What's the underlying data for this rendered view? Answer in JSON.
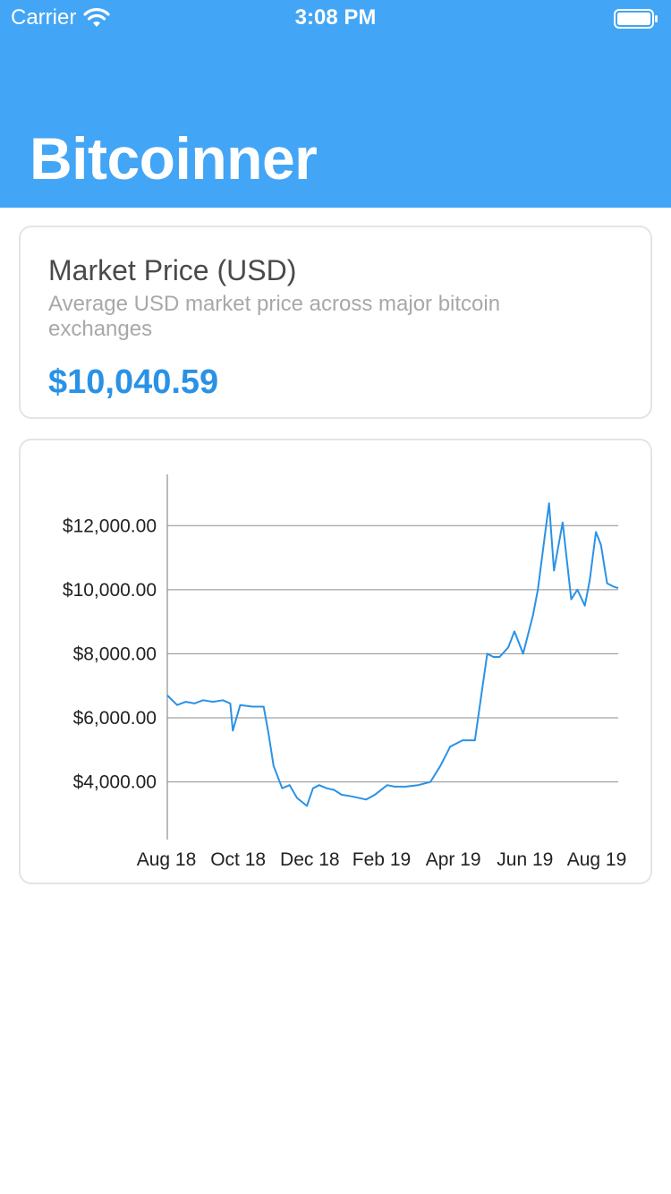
{
  "status_bar": {
    "carrier": "Carrier",
    "time": "3:08 PM"
  },
  "header": {
    "title": "Bitcoinner",
    "background_color": "#42a5f5"
  },
  "market_card": {
    "title": "Market Price (USD)",
    "description": "Average USD market price across major bitcoin exchanges",
    "price": "$10,040.59",
    "accent_color": "#2a92e6"
  },
  "chart_data": {
    "type": "line",
    "title": "",
    "xlabel": "",
    "ylabel": "",
    "x_tick_labels": [
      "Aug 18",
      "Oct 18",
      "Dec 18",
      "Feb 19",
      "Apr 19",
      "Jun 19",
      "Aug 19"
    ],
    "y_tick_labels": [
      "$12,000.00",
      "$10,000.00",
      "$8,000.00",
      "$6,000.00",
      "$4,000.00"
    ],
    "y_ticks": [
      12000,
      10000,
      8000,
      6000,
      4000
    ],
    "ylim": [
      2200,
      13600
    ],
    "xlim": [
      "2018-08-24",
      "2019-08-24"
    ],
    "grid": "horizontal",
    "line_color": "#2a92e6",
    "series": [
      {
        "x": [
          "2018-08-24",
          "2018-09-01",
          "2018-09-08",
          "2018-09-15",
          "2018-09-22",
          "2018-09-30",
          "2018-10-08",
          "2018-10-14",
          "2018-10-16",
          "2018-10-22",
          "2018-11-01",
          "2018-11-10",
          "2018-11-14",
          "2018-11-18",
          "2018-11-25",
          "2018-12-01",
          "2018-12-07",
          "2018-12-15",
          "2018-12-20",
          "2018-12-25",
          "2018-12-31",
          "2019-01-06",
          "2019-01-12",
          "2019-01-20",
          "2019-02-01",
          "2019-02-08",
          "2019-02-18",
          "2019-02-24",
          "2019-03-05",
          "2019-03-15",
          "2019-03-25",
          "2019-04-02",
          "2019-04-10",
          "2019-04-20",
          "2019-04-30",
          "2019-05-10",
          "2019-05-15",
          "2019-05-20",
          "2019-05-27",
          "2019-06-01",
          "2019-06-08",
          "2019-06-16",
          "2019-06-20",
          "2019-06-26",
          "2019-06-29",
          "2019-07-03",
          "2019-07-10",
          "2019-07-17",
          "2019-07-22",
          "2019-07-28",
          "2019-08-01",
          "2019-08-06",
          "2019-08-10",
          "2019-08-15",
          "2019-08-20",
          "2019-08-24"
        ],
        "y": [
          6700,
          6400,
          6500,
          6450,
          6550,
          6500,
          6550,
          6450,
          5600,
          6400,
          6350,
          6350,
          5500,
          4500,
          3800,
          3900,
          3500,
          3250,
          3800,
          3900,
          3800,
          3750,
          3600,
          3550,
          3450,
          3600,
          3900,
          3850,
          3850,
          3900,
          4000,
          4500,
          5100,
          5300,
          5300,
          8000,
          7900,
          7900,
          8200,
          8700,
          8000,
          9200,
          10000,
          11800,
          12700,
          10600,
          12100,
          9700,
          10000,
          9500,
          10300,
          11800,
          11400,
          10200,
          10100,
          10050
        ]
      }
    ]
  }
}
